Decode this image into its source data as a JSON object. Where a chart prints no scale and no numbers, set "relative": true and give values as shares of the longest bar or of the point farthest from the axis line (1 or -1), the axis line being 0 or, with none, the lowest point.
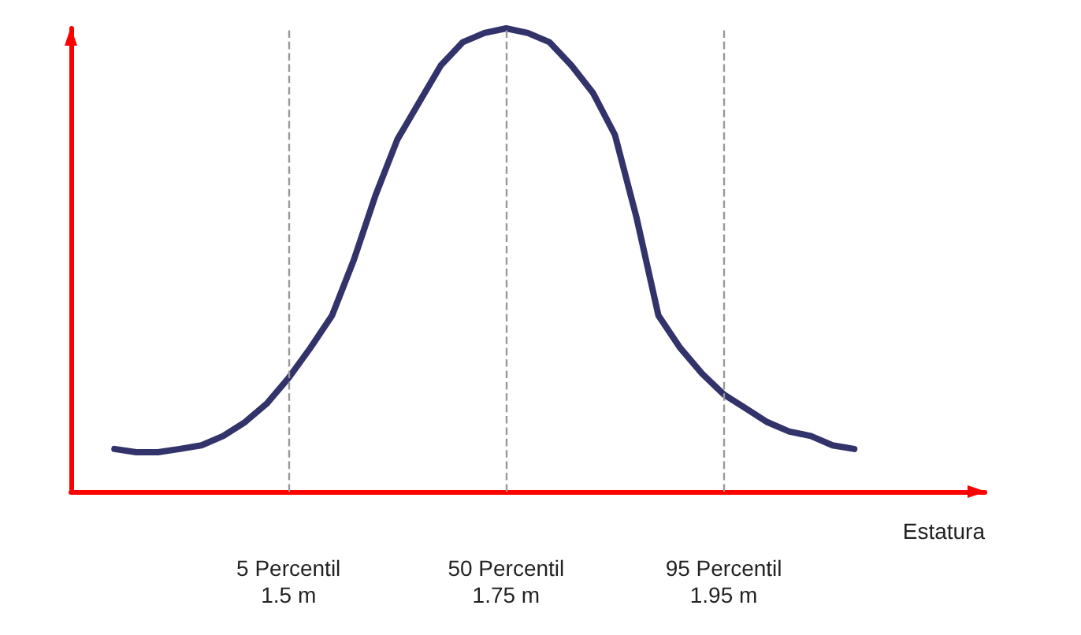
{
  "chart_data": {
    "type": "line",
    "relative": true,
    "xlabel": "Estatura",
    "categories": [
      null,
      null,
      null,
      null,
      null,
      null,
      null,
      null,
      null,
      null,
      "5 Percentil\n1.5 m",
      null,
      null,
      null,
      null,
      null,
      null,
      null,
      null,
      null,
      "50 Percentil\n1.75 m",
      null,
      null,
      null,
      null,
      null,
      null,
      null,
      null,
      null,
      "95 Percentil\n1.95 m",
      null,
      null,
      null,
      null,
      null,
      null,
      null,
      null,
      null,
      null,
      null,
      null
    ],
    "series": [
      {
        "color": "#33336b",
        "values": [
          null,
          null,
          0.092,
          0.085,
          0.085,
          0.092,
          0.1,
          0.12,
          0.15,
          0.19,
          0.245,
          0.31,
          0.38,
          0.5,
          0.64,
          0.76,
          0.84,
          0.92,
          0.97,
          0.99,
          1.0,
          0.99,
          0.97,
          0.92,
          0.86,
          0.77,
          0.59,
          0.38,
          0.31,
          0.255,
          0.21,
          0.18,
          0.15,
          0.13,
          0.12,
          0.1,
          0.092,
          null,
          null,
          null,
          null,
          null,
          null
        ]
      }
    ],
    "ref_lines": [
      {
        "axis": "x",
        "value": "5 Percentil\n1.5 m",
        "color": "#999999",
        "line_style": "dashed"
      },
      {
        "axis": "x",
        "value": "50 Percentil\n1.75 m",
        "color": "#999999",
        "line_style": "dashed"
      },
      {
        "axis": "x",
        "value": "95 Percentil\n1.95 m",
        "color": "#999999",
        "line_style": "dashed"
      }
    ],
    "grid": false,
    "marker": "none",
    "line_style": "solid"
  }
}
